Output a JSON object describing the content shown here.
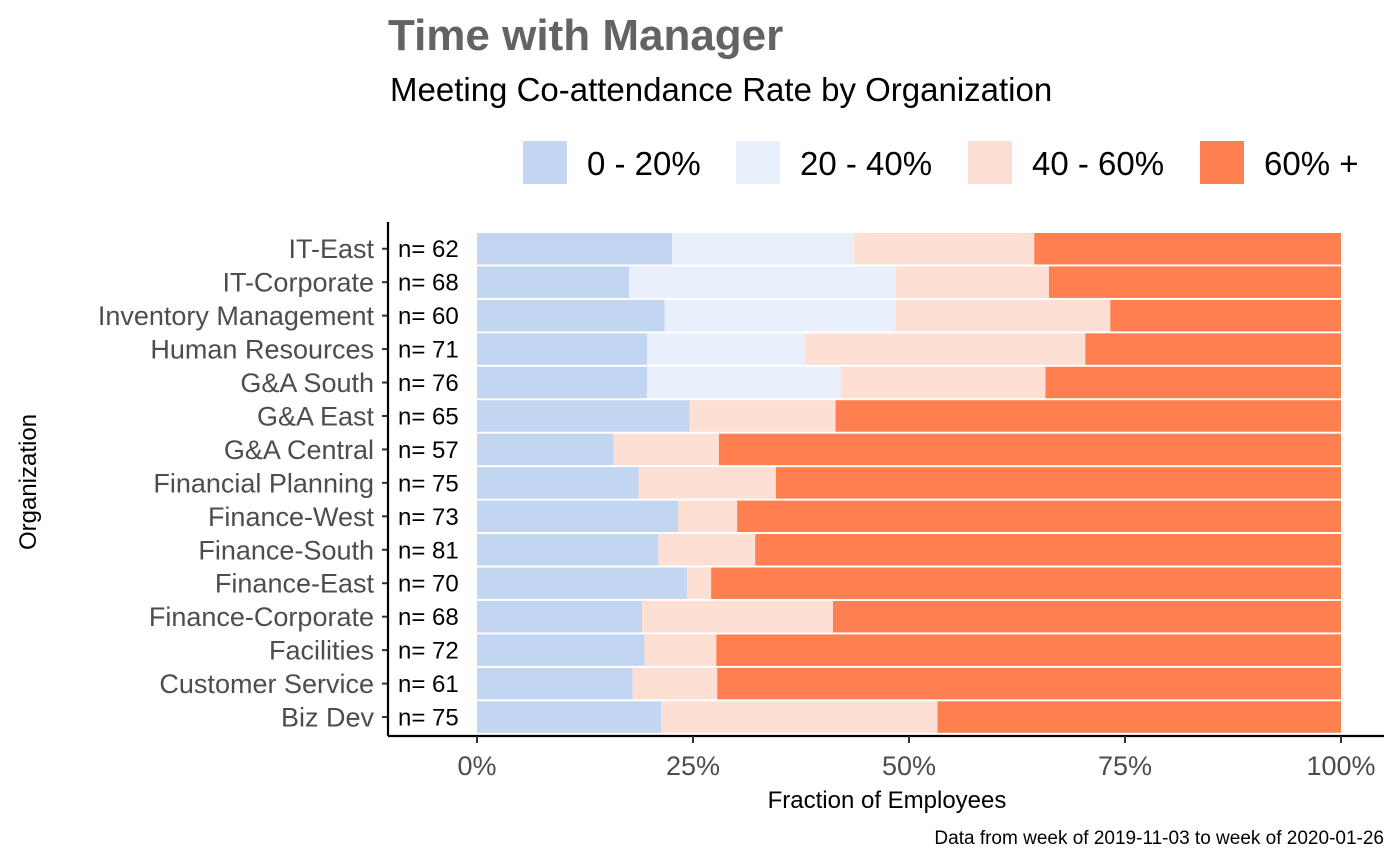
{
  "chart_data": {
    "type": "bar",
    "orientation": "horizontal",
    "stacked": true,
    "title": "Time with Manager",
    "subtitle": "Meeting Co-attendance Rate by Organization",
    "xlabel": "Fraction of Employees",
    "ylabel": "Organization",
    "caption": "Data from week of 2019-11-03 to week of 2020-01-26",
    "xlim": [
      0,
      1
    ],
    "x_ticks": [
      0,
      0.25,
      0.5,
      0.75,
      1
    ],
    "x_tick_labels": [
      "0%",
      "25%",
      "50%",
      "75%",
      "100%"
    ],
    "grid": false,
    "legend_position": "top",
    "categories": [
      "IT-East",
      "IT-Corporate",
      "Inventory Management",
      "Human Resources",
      "G&A South",
      "G&A East",
      "G&A Central",
      "Financial Planning",
      "Finance-West",
      "Finance-South",
      "Finance-East",
      "Finance-Corporate",
      "Facilities",
      "Customer Service",
      "Biz Dev"
    ],
    "counts": [
      "n= 62",
      "n= 68",
      "n= 60",
      "n= 71",
      "n= 76",
      "n= 65",
      "n= 57",
      "n= 75",
      "n= 73",
      "n= 81",
      "n= 70",
      "n= 68",
      "n= 72",
      "n= 61",
      "n= 75"
    ],
    "series": [
      {
        "name": "0 - 20%",
        "color": "#c2d5f1",
        "values": [
          0.226,
          0.176,
          0.217,
          0.197,
          0.197,
          0.246,
          0.158,
          0.187,
          0.233,
          0.21,
          0.243,
          0.191,
          0.194,
          0.18,
          0.213
        ]
      },
      {
        "name": "20 - 40%",
        "color": "#e9f0fb",
        "values": [
          0.21,
          0.309,
          0.267,
          0.183,
          0.224,
          0.0,
          0.0,
          0.0,
          0.0,
          0.0,
          0.0,
          0.0,
          0.0,
          0.0,
          0.0
        ]
      },
      {
        "name": "40 - 60%",
        "color": "#fedfd4",
        "values": [
          0.209,
          0.177,
          0.249,
          0.324,
          0.237,
          0.169,
          0.122,
          0.159,
          0.068,
          0.112,
          0.028,
          0.221,
          0.083,
          0.098,
          0.32
        ]
      },
      {
        "name": "60% +",
        "color": "#fe8050",
        "values": [
          0.355,
          0.338,
          0.267,
          0.296,
          0.342,
          0.585,
          0.72,
          0.654,
          0.699,
          0.678,
          0.729,
          0.588,
          0.723,
          0.722,
          0.467
        ]
      }
    ]
  }
}
